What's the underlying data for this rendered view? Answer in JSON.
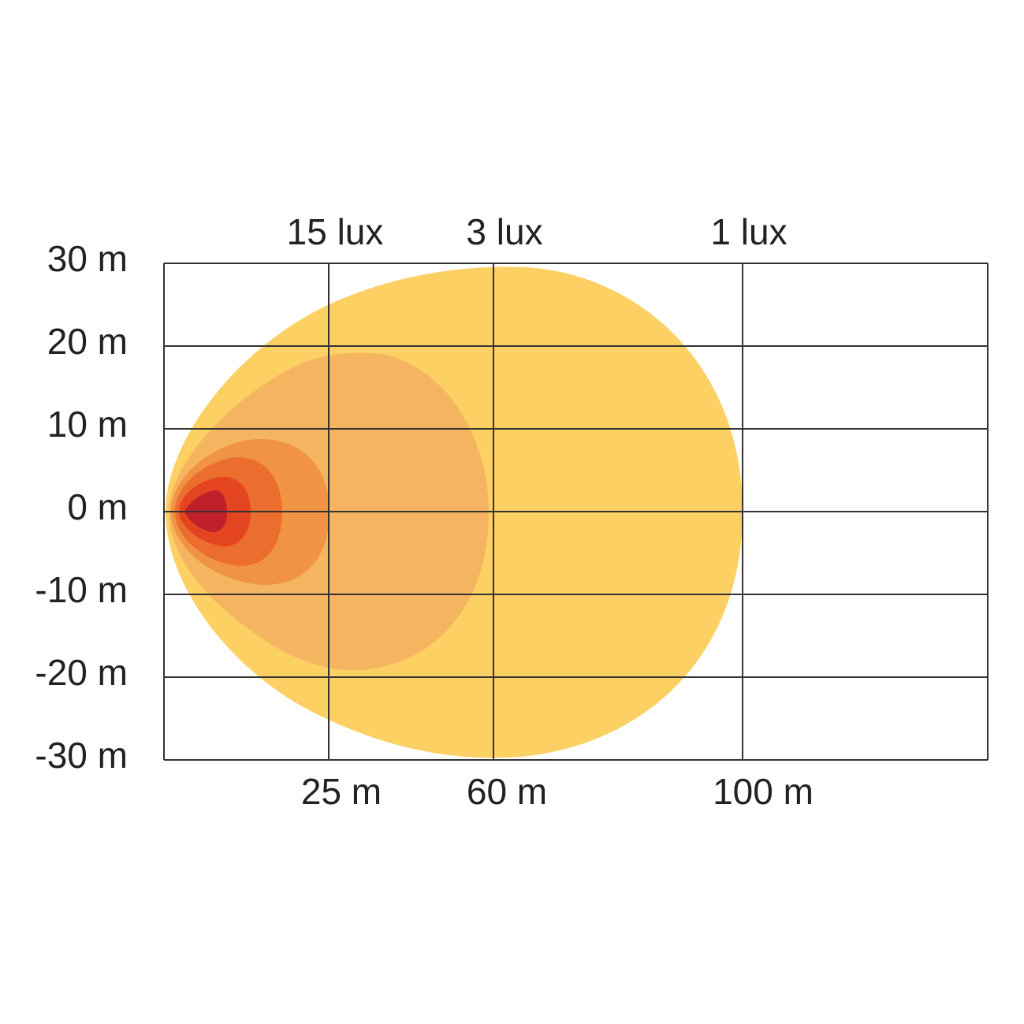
{
  "y_axis": {
    "labels": [
      "30 m",
      "20 m",
      "10 m",
      "0 m",
      "-10 m",
      "-20 m",
      "-30 m"
    ]
  },
  "x_axis": {
    "labels": [
      "25 m",
      "60 m",
      "100 m"
    ]
  },
  "zones": {
    "labels": [
      "15 lux",
      "3 lux",
      "1 lux"
    ]
  }
}
